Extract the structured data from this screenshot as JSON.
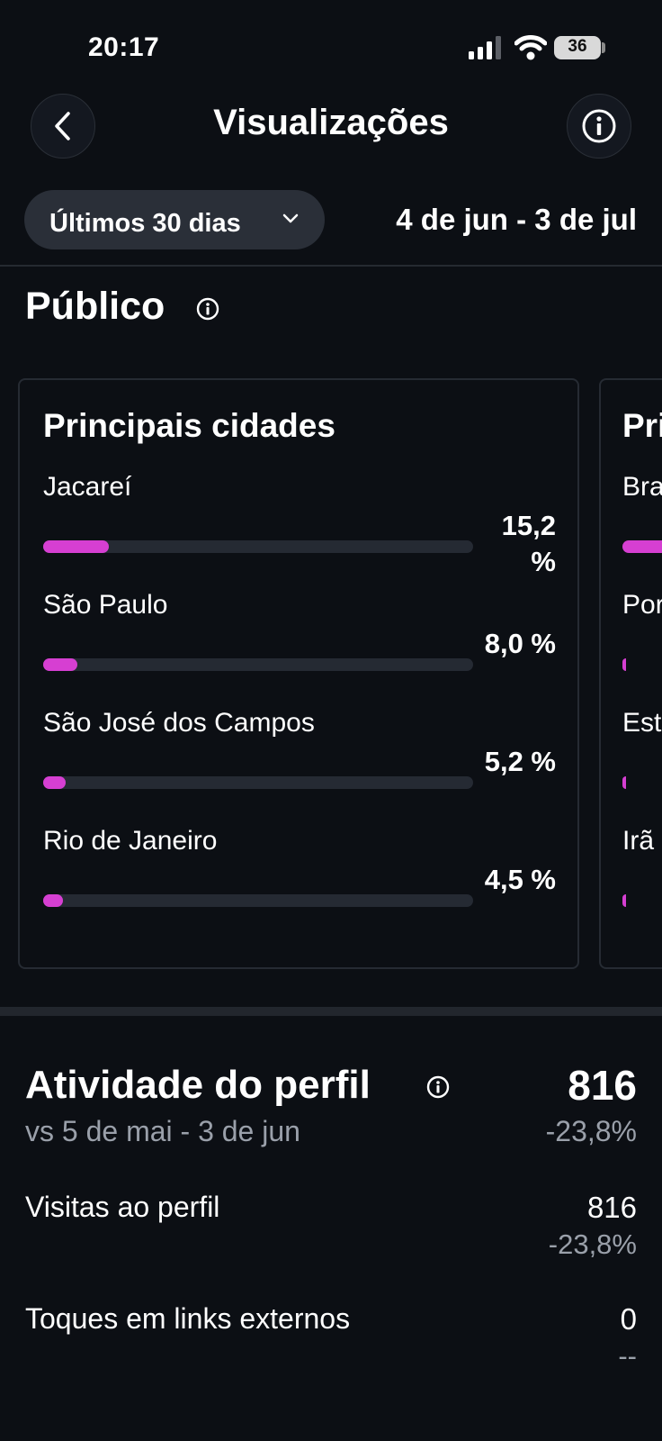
{
  "status_bar": {
    "time": "20:17",
    "battery": "36"
  },
  "header": {
    "title": "Visualizações"
  },
  "filters": {
    "range_label": "Últimos 30 dias",
    "date_range": "4 de jun - 3 de jul"
  },
  "audience": {
    "section_title": "Público",
    "cities_card": {
      "title": "Principais cidades",
      "rows": [
        {
          "name": "Jacareí",
          "percent": "15,2 %",
          "share": 0.152
        },
        {
          "name": "São Paulo",
          "percent": "8,0 %",
          "share": 0.08
        },
        {
          "name": "São José dos Campos",
          "percent": "5,2 %",
          "share": 0.052
        },
        {
          "name": "Rio de Janeiro",
          "percent": "4,5 %",
          "share": 0.045
        }
      ]
    },
    "countries_card_partial": {
      "title": "Pri",
      "rows": [
        {
          "name": "Bra"
        },
        {
          "name": "Por"
        },
        {
          "name": "Est"
        },
        {
          "name": "Irã"
        }
      ]
    }
  },
  "profile_activity": {
    "title": "Atividade do perfil",
    "total": "816",
    "comparison": "vs 5 de mai - 3 de jun",
    "change": "-23,8%",
    "metrics": [
      {
        "label": "Visitas ao perfil",
        "value": "816",
        "change": "-23,8%"
      },
      {
        "label": "Toques em links externos",
        "value": "0",
        "change": "--"
      }
    ]
  },
  "colors": {
    "accent": "#d63fd2",
    "background": "#0c0f14",
    "muted_text": "#9aa0aa"
  }
}
